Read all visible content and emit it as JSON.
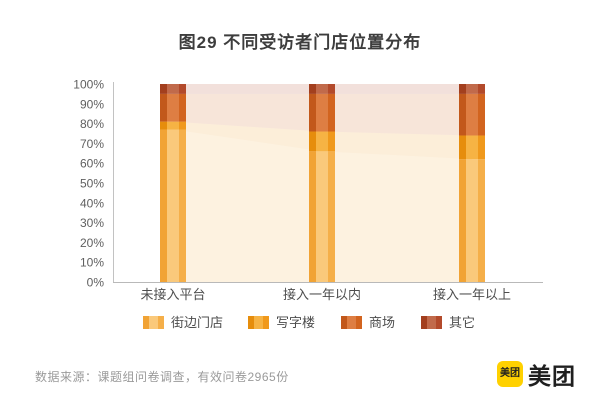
{
  "title": "图29  不同受访者门店位置分布",
  "source_note": "数据来源：课题组问卷调查，有效问卷2965份",
  "logo": {
    "badge_text": "美团",
    "wordmark": "美团",
    "badge_color": "#FFD100",
    "text_color": "#1f1f1f"
  },
  "chart_data": {
    "type": "bar",
    "stacked": true,
    "percent_stacked": true,
    "title": "图29  不同受访者门店位置分布",
    "categories": [
      "未接入平台",
      "接入一年以内",
      "接入一年以上"
    ],
    "series": [
      {
        "name": "街边门店",
        "values": [
          77,
          66,
          62
        ],
        "color": "#F5AF49",
        "tint": "#FAC97B",
        "shade": "#F1A335"
      },
      {
        "name": "写字楼",
        "values": [
          4,
          10,
          12
        ],
        "color": "#F0991C",
        "tint": "#F6B344",
        "shade": "#E68D0C"
      },
      {
        "name": "商场",
        "values": [
          14,
          19,
          21
        ],
        "color": "#D2641F",
        "tint": "#DE7E43",
        "shade": "#C2581B"
      },
      {
        "name": "其它",
        "values": [
          5,
          5,
          5
        ],
        "color": "#B34A2B",
        "tint": "#C16A4B",
        "shade": "#A33F1E"
      }
    ],
    "xlabel": "",
    "ylabel": "",
    "ylim": [
      0,
      100
    ],
    "yticks": [
      "0%",
      "10%",
      "20%",
      "30%",
      "40%",
      "50%",
      "60%",
      "70%",
      "80%",
      "90%",
      "100%"
    ],
    "grid": false,
    "legend_position": "bottom",
    "area_opacity": 0.17,
    "axis_color": "#c2c2c2"
  }
}
